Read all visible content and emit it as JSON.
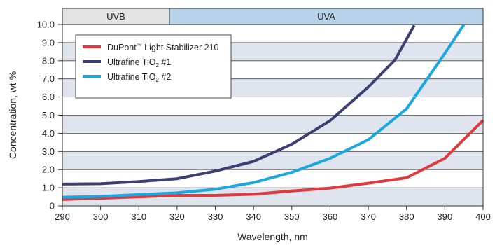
{
  "chart_data": {
    "type": "line",
    "xlabel": "Wavelength, nm",
    "ylabel": "Concentration, wt %",
    "xlim": [
      290,
      400
    ],
    "ylim": [
      0,
      10
    ],
    "x_ticks": [
      290,
      300,
      310,
      320,
      330,
      340,
      350,
      360,
      370,
      380,
      390,
      400
    ],
    "y_ticks": [
      {
        "value": 0,
        "label": "0"
      },
      {
        "value": 1,
        "label": "1.0"
      },
      {
        "value": 2,
        "label": "2.0"
      },
      {
        "value": 3,
        "label": "3.0"
      },
      {
        "value": 4,
        "label": "4.0"
      },
      {
        "value": 5,
        "label": "5.0"
      },
      {
        "value": 6,
        "label": "6.0"
      },
      {
        "value": 7,
        "label": "7.0"
      },
      {
        "value": 8,
        "label": "8.0"
      },
      {
        "value": 9,
        "label": "9.0"
      },
      {
        "value": 10,
        "label": "10.0"
      }
    ],
    "grid": "alternating horizontal bands",
    "legend_position": "top-left",
    "bands": [
      {
        "label": "UVB",
        "from": 290,
        "to": 318,
        "color": "#e4e4e4"
      },
      {
        "label": "UVA",
        "from": 318,
        "to": 400,
        "color": "#b7d3ea"
      }
    ],
    "series": [
      {
        "name_parts": [
          "DuPont",
          "™",
          " Light Stabilizer 210"
        ],
        "color": "#e03a3e",
        "points": [
          [
            290,
            0.35
          ],
          [
            300,
            0.42
          ],
          [
            310,
            0.5
          ],
          [
            320,
            0.58
          ],
          [
            330,
            0.58
          ],
          [
            340,
            0.64
          ],
          [
            350,
            0.82
          ],
          [
            360,
            0.98
          ],
          [
            370,
            1.25
          ],
          [
            380,
            1.55
          ],
          [
            390,
            2.62
          ],
          [
            400,
            4.72
          ]
        ]
      },
      {
        "name_parts": [
          "Ultrafine TiO",
          "2",
          " #1"
        ],
        "color": "#3b3f73",
        "points": [
          [
            290,
            1.2
          ],
          [
            300,
            1.22
          ],
          [
            310,
            1.34
          ],
          [
            320,
            1.5
          ],
          [
            330,
            1.92
          ],
          [
            340,
            2.45
          ],
          [
            350,
            3.4
          ],
          [
            360,
            4.7
          ],
          [
            370,
            6.55
          ],
          [
            377,
            8.05
          ],
          [
            382,
            9.95
          ]
        ]
      },
      {
        "name_parts": [
          "Ultrafine TiO",
          "2",
          " #2"
        ],
        "color": "#1ba8e0",
        "points": [
          [
            290,
            0.48
          ],
          [
            300,
            0.52
          ],
          [
            310,
            0.62
          ],
          [
            320,
            0.72
          ],
          [
            330,
            0.92
          ],
          [
            340,
            1.28
          ],
          [
            350,
            1.85
          ],
          [
            360,
            2.62
          ],
          [
            370,
            3.65
          ],
          [
            380,
            5.35
          ],
          [
            390,
            8.4
          ],
          [
            395,
            10.0
          ]
        ]
      }
    ]
  }
}
